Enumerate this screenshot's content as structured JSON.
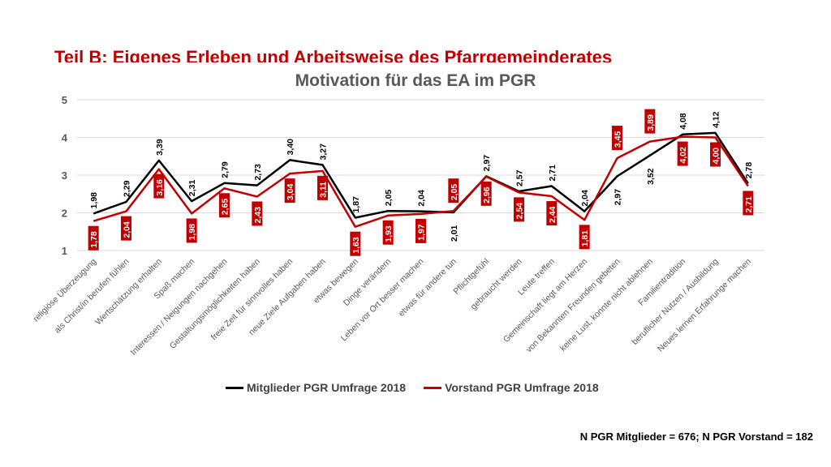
{
  "slide_title": "Teil B: Eigenes Erleben und Arbeitsweise des Pfarrgemeinderates",
  "footnote": "N PGR Mitglieder = 676; N PGR Vorstand = 182",
  "colors": {
    "title": "#c00000",
    "series1": "#000000",
    "series2": "#c00000",
    "grid": "#d9d9d9"
  },
  "chart_data": {
    "type": "line",
    "title": "Motivation für das EA im PGR",
    "ylim": [
      1,
      5
    ],
    "yticks": [
      1,
      2,
      3,
      4,
      5
    ],
    "grid": true,
    "legend_position": "bottom",
    "categories": [
      "religiöse Überzeugung",
      "als Christ/in berufen fühlen",
      "Wertschätzung erhalten",
      "Spaß machen",
      "Interessen / Neigungen nachgehen",
      "Gestaltungsmöglichkeiten haben",
      "freie Zeit für sinnvolles haben",
      "neue Ziele Aufgaben haben",
      "etwas bewegen",
      "Dinge verändern",
      "Leben vor Ort besser machen",
      "etwas für andere tun",
      "Pflichtgefühl",
      "gebraucht werden",
      "Leute treffen",
      "Gemeinschaft liegt am Herzen",
      "von Bekannten Freunden gebeten",
      "keine Lust, konnte nicht ablehnen",
      "Familientradition",
      "beruflicher Nutzen / Ausbildung",
      "Neues lernen Erfahrunge machen"
    ],
    "series": [
      {
        "name": "Mitglieder PGR Umfrage 2018",
        "values": [
          1.98,
          2.29,
          3.39,
          2.31,
          2.79,
          2.73,
          3.4,
          3.27,
          1.87,
          2.05,
          2.04,
          2.01,
          2.97,
          2.57,
          2.71,
          2.04,
          2.97,
          3.52,
          4.08,
          4.12,
          2.78
        ],
        "labels": [
          "1,98",
          "2,29",
          "3,39",
          "2,31",
          "2,79",
          "2,73",
          "3,40",
          "3,27",
          "1,87",
          "2,05",
          "2,04",
          "2,01",
          "2,97",
          "2,57",
          "2,71",
          "2,04",
          "2,97",
          "3,52",
          "4,08",
          "4,12",
          "2,78"
        ]
      },
      {
        "name": "Vorstand PGR Umfrage 2018",
        "values": [
          1.78,
          2.04,
          3.16,
          1.98,
          2.65,
          2.43,
          3.04,
          3.11,
          1.63,
          1.93,
          1.97,
          2.05,
          2.96,
          2.54,
          2.44,
          1.81,
          3.45,
          3.89,
          4.02,
          4.0,
          2.71
        ],
        "labels": [
          "1,78",
          "2,04",
          "3,16",
          "1,98",
          "2,65",
          "2,43",
          "3,04",
          "3,11",
          "1,63",
          "1,93",
          "1,97",
          "2,05",
          "2,96",
          "2,54",
          "2,44",
          "1,81",
          "3,45",
          "3,89",
          "4,02",
          "4,00",
          "2,71"
        ]
      }
    ]
  }
}
